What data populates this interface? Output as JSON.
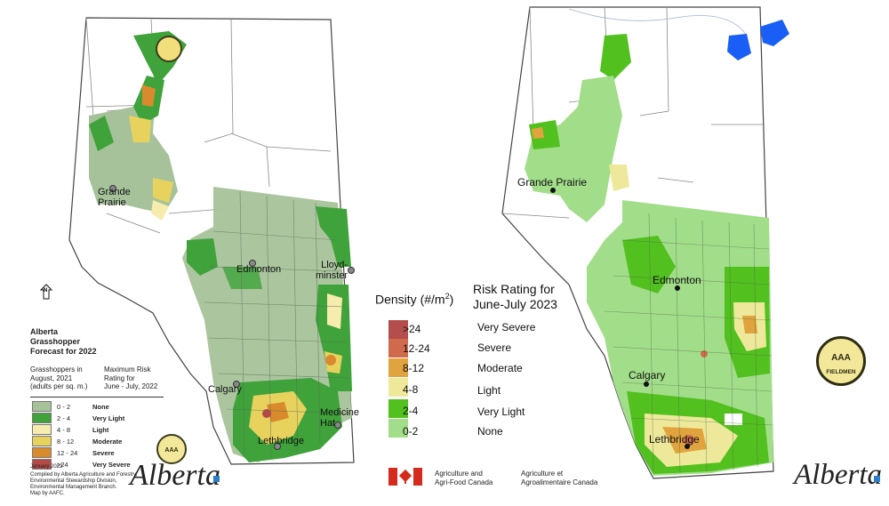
{
  "left_map": {
    "title_lines": [
      "Alberta",
      "Grasshopper",
      "Forecast for 2022"
    ],
    "col1_header": [
      "Grasshoppers in",
      "August, 2021",
      "(adults per sq. m.)"
    ],
    "col2_header": [
      "Maximum Risk",
      "Rating for",
      "June - July, 2022"
    ],
    "legend": [
      {
        "range": "0 - 2",
        "rating": "None",
        "color": "#a6c29a"
      },
      {
        "range": "2 - 4",
        "rating": "Very Light",
        "color": "#3fa23a"
      },
      {
        "range": "4 - 8",
        "rating": "Light",
        "color": "#f5ecae"
      },
      {
        "range": "8 - 12",
        "rating": "Moderate",
        "color": "#e8d25e"
      },
      {
        "range": "12 - 24",
        "rating": "Severe",
        "color": "#d98a2c"
      },
      {
        "range": ">24",
        "rating": "Very Severe",
        "color": "#b44a47"
      }
    ],
    "date": "January 2022",
    "credits": [
      "Compiled by Alberta Agriculture and Forestry,",
      "Environmental Stewardship Division,",
      "Environmental Management Branch.",
      "Map by AAFC."
    ],
    "cities": {
      "grande_prairie": "Grande\nPrairie",
      "edmonton": "Edmonton",
      "lloydminster": "Lloyd-\nminster",
      "calgary": "Calgary",
      "medicine_hat": "Medicine\nHat",
      "lethbridge": "Lethbridge"
    },
    "north_arrow": "N",
    "badge_text": "AAA"
  },
  "density_legend": {
    "title": "Density (#/m2)",
    "title_main": "Density (#/m",
    "title_sup": "2",
    "title_close": ")",
    "items": [
      {
        "value": ">24",
        "color": "#b34e4d"
      },
      {
        "value": "12-24",
        "color": "#cf6b4c"
      },
      {
        "value": "8-12",
        "color": "#e0a33d"
      },
      {
        "value": "4-8",
        "color": "#eee99a"
      },
      {
        "value": "2-4",
        "color": "#52c01e"
      },
      {
        "value": "0-2",
        "color": "#a2dd8a"
      }
    ]
  },
  "risk_legend": {
    "title_lines": [
      "Risk Rating for",
      "June-July 2023"
    ],
    "items": [
      "Very Severe",
      "Severe",
      "Moderate",
      "Light",
      "Very Light",
      "None"
    ]
  },
  "right_map": {
    "cities": {
      "grande_prairie": "Grande Prairie",
      "edmonton": "Edmonton",
      "calgary": "Calgary",
      "lethbridge": "Lethbridge"
    },
    "badge_top": "AAA",
    "badge_bottom": "FIELDMEN"
  },
  "footer": {
    "alberta_left": "Alberta",
    "aafc_en": [
      "Agriculture and",
      "Agri-Food Canada"
    ],
    "aafc_fr": [
      "Agriculture et",
      "Agroalimentaire Canada"
    ],
    "alberta_right": "Alberta"
  }
}
